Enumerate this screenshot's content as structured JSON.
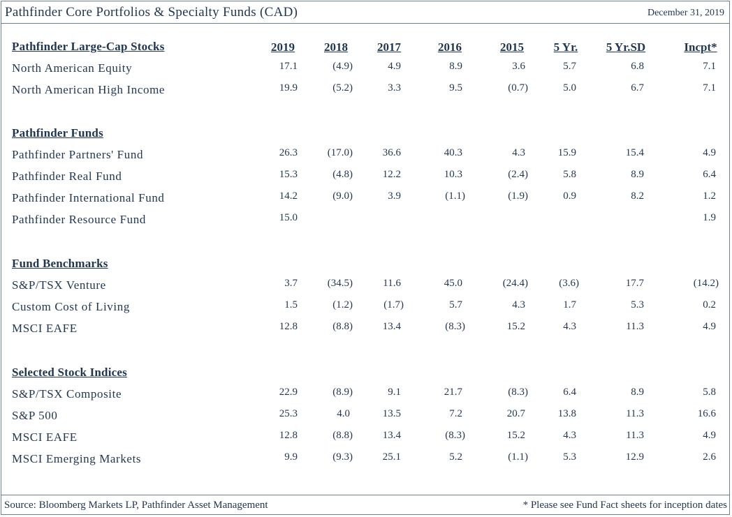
{
  "header": {
    "title": "Pathfinder Core Portfolios & Specialty Funds (CAD)",
    "date": "December 31, 2019"
  },
  "columns": [
    "2019",
    "2018",
    "2017",
    "2016",
    "2015",
    "5 Yr.",
    "5 Yr.SD",
    "Incpt*"
  ],
  "sections": [
    {
      "title": "Pathfinder Large-Cap Stocks",
      "show_columns": true,
      "rows": [
        {
          "label": "North American Equity",
          "values": [
            "17.1",
            "(4.9)",
            "4.9",
            "8.9",
            "3.6",
            "5.7",
            "6.8",
            "7.1"
          ]
        },
        {
          "label": "North American High Income",
          "values": [
            "19.9",
            "(5.2)",
            "3.3",
            "9.5",
            "(0.7)",
            "5.0",
            "6.7",
            "7.1"
          ]
        }
      ]
    },
    {
      "title": "Pathfinder Funds",
      "show_columns": false,
      "rows": [
        {
          "label": "Pathfinder Partners' Fund",
          "values": [
            "26.3",
            "(17.0)",
            "36.6",
            "40.3",
            "4.3",
            "15.9",
            "15.4",
            "4.9"
          ]
        },
        {
          "label": "Pathfinder Real Fund",
          "values": [
            "15.3",
            "(4.8)",
            "12.2",
            "10.3",
            "(2.4)",
            "5.8",
            "8.9",
            "6.4"
          ]
        },
        {
          "label": "Pathfinder International Fund",
          "values": [
            "14.2",
            "(9.0)",
            "3.9",
            "(1.1)",
            "(1.9)",
            "0.9",
            "8.2",
            "1.2"
          ]
        },
        {
          "label": "Pathfinder Resource Fund",
          "values": [
            "15.0",
            "",
            "",
            "",
            "",
            "",
            "",
            "1.9"
          ]
        }
      ]
    },
    {
      "title": "Fund Benchmarks",
      "show_columns": false,
      "rows": [
        {
          "label": "S&P/TSX Venture",
          "values": [
            "3.7",
            "(34.5)",
            "11.6",
            "45.0",
            "(24.4)",
            "(3.6)",
            "17.7",
            "(14.2)"
          ]
        },
        {
          "label": "Custom Cost of Living",
          "values": [
            "1.5",
            "(1.2)",
            "(1.7)",
            "5.7",
            "4.3",
            "1.7",
            "5.3",
            "0.2"
          ]
        },
        {
          "label": "MSCI EAFE",
          "values": [
            "12.8",
            "(8.8)",
            "13.4",
            "(8.3)",
            "15.2",
            "4.3",
            "11.3",
            "4.9"
          ]
        }
      ]
    },
    {
      "title": "Selected Stock Indices",
      "show_columns": false,
      "rows": [
        {
          "label": "S&P/TSX Composite",
          "values": [
            "22.9",
            "(8.9)",
            "9.1",
            "21.7",
            "(8.3)",
            "6.4",
            "8.9",
            "5.8"
          ]
        },
        {
          "label": "S&P 500",
          "values": [
            "25.3",
            "4.0",
            "13.5",
            "7.2",
            "20.7",
            "13.8",
            "11.3",
            "16.6"
          ]
        },
        {
          "label": "MSCI EAFE",
          "values": [
            "12.8",
            "(8.8)",
            "13.4",
            "(8.3)",
            "15.2",
            "4.3",
            "11.3",
            "4.9"
          ]
        },
        {
          "label": "MSCI Emerging Markets",
          "values": [
            "9.9",
            "(9.3)",
            "25.1",
            "5.2",
            "(1.1)",
            "5.3",
            "12.9",
            "2.6"
          ]
        }
      ]
    }
  ],
  "footer": {
    "source": "Source: Bloomberg Markets LP, Pathfinder Asset Management",
    "note": "* Please see Fund Fact sheets for inception dates"
  }
}
